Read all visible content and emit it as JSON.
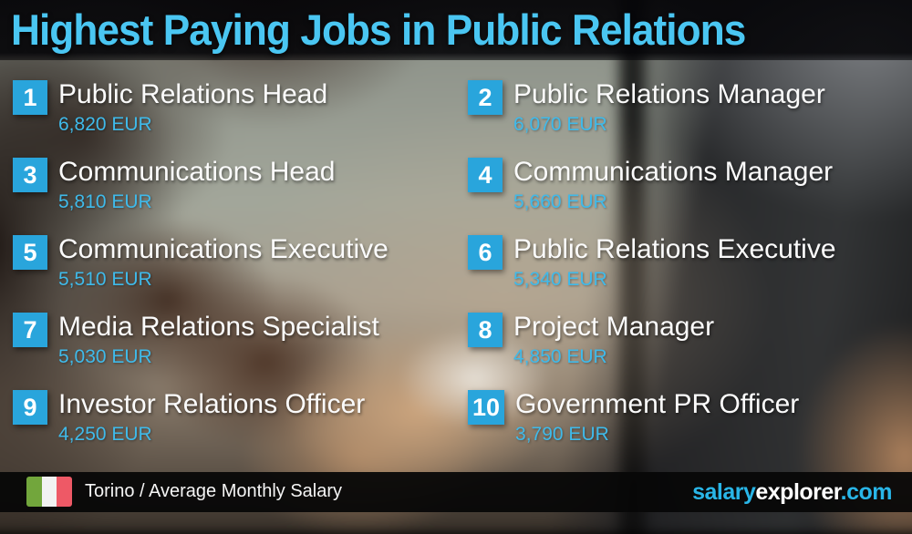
{
  "title": "Highest Paying Jobs in Public Relations",
  "jobs": [
    {
      "rank": "1",
      "title": "Public Relations Head",
      "salary": "6,820 EUR"
    },
    {
      "rank": "2",
      "title": "Public Relations Manager",
      "salary": "6,070 EUR"
    },
    {
      "rank": "3",
      "title": "Communications Head",
      "salary": "5,810 EUR"
    },
    {
      "rank": "4",
      "title": "Communications Manager",
      "salary": "5,660 EUR"
    },
    {
      "rank": "5",
      "title": "Communications Executive",
      "salary": "5,510 EUR"
    },
    {
      "rank": "6",
      "title": "Public Relations Executive",
      "salary": "5,340 EUR"
    },
    {
      "rank": "7",
      "title": "Media Relations Specialist",
      "salary": "5,030 EUR"
    },
    {
      "rank": "8",
      "title": "Project Manager",
      "salary": "4,850 EUR"
    },
    {
      "rank": "9",
      "title": "Investor Relations Officer",
      "salary": "4,250 EUR"
    },
    {
      "rank": "10",
      "title": "Government PR Officer",
      "salary": "3,790 EUR"
    }
  ],
  "footer": {
    "flag_icon": "italy-flag-icon",
    "caption": "Torino / Average Monthly Salary",
    "brand_salary": "salary",
    "brand_explorer": "explorer",
    "brand_tld": ".com"
  },
  "colors": {
    "accent_badge": "#29A5DC",
    "title_text": "#4AC6F2",
    "salary_text": "#3FBAEA",
    "brand_cyan": "#29B6E8",
    "flag_green": "#72A63C",
    "flag_white": "#F2F2F2",
    "flag_red": "#EE5966"
  },
  "chart_data": {
    "type": "table",
    "title": "Highest Paying Jobs in Public Relations",
    "categories": [
      "Public Relations Head",
      "Public Relations Manager",
      "Communications Head",
      "Communications Manager",
      "Communications Executive",
      "Public Relations Executive",
      "Media Relations Specialist",
      "Project Manager",
      "Investor Relations Officer",
      "Government PR Officer"
    ],
    "values": [
      6820,
      6070,
      5810,
      5660,
      5510,
      5340,
      5030,
      4850,
      4250,
      3790
    ],
    "unit": "EUR",
    "footnote": "Torino / Average Monthly Salary"
  }
}
